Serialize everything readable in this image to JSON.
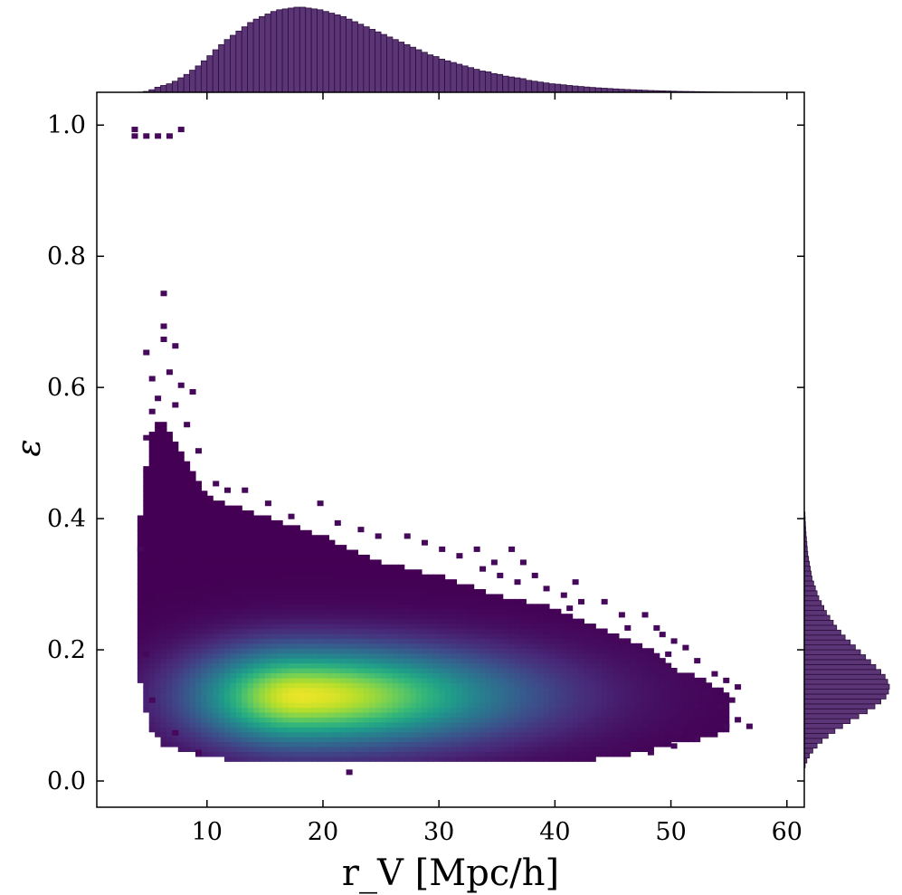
{
  "chart_data": {
    "type": "heatmap",
    "title": "",
    "xlabel": "r_V [Mpc/h]",
    "ylabel": "ε",
    "xlim": [
      0.5,
      61.5
    ],
    "ylim": [
      -0.04,
      1.05
    ],
    "xticks": [
      10,
      20,
      30,
      40,
      50,
      60
    ],
    "yticks": [
      0.0,
      0.2,
      0.4,
      0.6,
      0.8,
      1.0
    ],
    "xtick_labels": [
      "10",
      "20",
      "30",
      "40",
      "50",
      "60"
    ],
    "ytick_labels": [
      "0.0",
      "0.2",
      "0.4",
      "0.6",
      "0.8",
      "1.0"
    ],
    "colormap": "viridis",
    "grid": false,
    "density_peak": {
      "x": 18,
      "y": 0.13
    },
    "density_spread": {
      "x_left": 5.5,
      "x_right": 11,
      "y": 0.045
    },
    "envelope": [
      {
        "x": 4,
        "y_min": 0.17,
        "y_max": 0.36
      },
      {
        "x": 5,
        "y_min": 0.09,
        "y_max": 0.52
      },
      {
        "x": 6,
        "y_min": 0.06,
        "y_max": 0.55
      },
      {
        "x": 8,
        "y_min": 0.05,
        "y_max": 0.49
      },
      {
        "x": 10,
        "y_min": 0.04,
        "y_max": 0.43
      },
      {
        "x": 15,
        "y_min": 0.03,
        "y_max": 0.4
      },
      {
        "x": 20,
        "y_min": 0.03,
        "y_max": 0.37
      },
      {
        "x": 25,
        "y_min": 0.03,
        "y_max": 0.33
      },
      {
        "x": 30,
        "y_min": 0.03,
        "y_max": 0.31
      },
      {
        "x": 35,
        "y_min": 0.03,
        "y_max": 0.28
      },
      {
        "x": 40,
        "y_min": 0.03,
        "y_max": 0.26
      },
      {
        "x": 45,
        "y_min": 0.04,
        "y_max": 0.22
      },
      {
        "x": 48,
        "y_min": 0.05,
        "y_max": 0.2
      },
      {
        "x": 50,
        "y_min": 0.06,
        "y_max": 0.17
      },
      {
        "x": 53,
        "y_min": 0.07,
        "y_max": 0.15
      },
      {
        "x": 55,
        "y_min": 0.08,
        "y_max": 0.13
      }
    ],
    "extra_points": [
      {
        "x": 3.5,
        "y": 0.98
      },
      {
        "x": 4.5,
        "y": 0.98
      },
      {
        "x": 5.5,
        "y": 0.98
      },
      {
        "x": 6.5,
        "y": 0.98
      },
      {
        "x": 7.5,
        "y": 0.99
      },
      {
        "x": 3.5,
        "y": 0.99
      },
      {
        "x": 6.0,
        "y": 0.74
      },
      {
        "x": 6.0,
        "y": 0.69
      },
      {
        "x": 6.0,
        "y": 0.67
      },
      {
        "x": 7.0,
        "y": 0.66
      },
      {
        "x": 4.5,
        "y": 0.65
      },
      {
        "x": 6.5,
        "y": 0.62
      },
      {
        "x": 5.0,
        "y": 0.61
      },
      {
        "x": 7.5,
        "y": 0.6
      },
      {
        "x": 8.5,
        "y": 0.59
      },
      {
        "x": 5.5,
        "y": 0.58
      },
      {
        "x": 7.0,
        "y": 0.57
      },
      {
        "x": 5.0,
        "y": 0.56
      },
      {
        "x": 8.0,
        "y": 0.54
      },
      {
        "x": 4.5,
        "y": 0.52
      },
      {
        "x": 9.0,
        "y": 0.5
      },
      {
        "x": 10.5,
        "y": 0.45
      },
      {
        "x": 11.5,
        "y": 0.44
      },
      {
        "x": 13.0,
        "y": 0.44
      },
      {
        "x": 15.0,
        "y": 0.42
      },
      {
        "x": 19.5,
        "y": 0.42
      },
      {
        "x": 17.0,
        "y": 0.4
      },
      {
        "x": 21.0,
        "y": 0.39
      },
      {
        "x": 23.0,
        "y": 0.38
      },
      {
        "x": 24.5,
        "y": 0.37
      },
      {
        "x": 27.0,
        "y": 0.37
      },
      {
        "x": 28.5,
        "y": 0.36
      },
      {
        "x": 30.0,
        "y": 0.35
      },
      {
        "x": 33.0,
        "y": 0.35
      },
      {
        "x": 36.0,
        "y": 0.35
      },
      {
        "x": 31.5,
        "y": 0.34
      },
      {
        "x": 34.5,
        "y": 0.33
      },
      {
        "x": 37.0,
        "y": 0.33
      },
      {
        "x": 33.5,
        "y": 0.32
      },
      {
        "x": 35.0,
        "y": 0.31
      },
      {
        "x": 38.0,
        "y": 0.31
      },
      {
        "x": 36.5,
        "y": 0.3
      },
      {
        "x": 41.5,
        "y": 0.3
      },
      {
        "x": 39.0,
        "y": 0.29
      },
      {
        "x": 40.5,
        "y": 0.28
      },
      {
        "x": 42.0,
        "y": 0.27
      },
      {
        "x": 44.0,
        "y": 0.27
      },
      {
        "x": 41.0,
        "y": 0.26
      },
      {
        "x": 45.5,
        "y": 0.25
      },
      {
        "x": 47.5,
        "y": 0.25
      },
      {
        "x": 46.0,
        "y": 0.23
      },
      {
        "x": 48.5,
        "y": 0.23
      },
      {
        "x": 49.0,
        "y": 0.22
      },
      {
        "x": 50.0,
        "y": 0.21
      },
      {
        "x": 51.0,
        "y": 0.2
      },
      {
        "x": 49.5,
        "y": 0.19
      },
      {
        "x": 52.0,
        "y": 0.18
      },
      {
        "x": 53.5,
        "y": 0.16
      },
      {
        "x": 54.5,
        "y": 0.15
      },
      {
        "x": 55.5,
        "y": 0.14
      },
      {
        "x": 53.0,
        "y": 0.13
      },
      {
        "x": 55.0,
        "y": 0.12
      },
      {
        "x": 54.0,
        "y": 0.11
      },
      {
        "x": 52.5,
        "y": 0.1
      },
      {
        "x": 55.5,
        "y": 0.09
      },
      {
        "x": 54.5,
        "y": 0.08
      },
      {
        "x": 56.5,
        "y": 0.08
      },
      {
        "x": 50.5,
        "y": 0.07
      },
      {
        "x": 52.0,
        "y": 0.06
      },
      {
        "x": 50.0,
        "y": 0.05
      },
      {
        "x": 46.0,
        "y": 0.05
      },
      {
        "x": 48.0,
        "y": 0.04
      },
      {
        "x": 22.0,
        "y": 0.01
      },
      {
        "x": 4.0,
        "y": 0.35
      },
      {
        "x": 4.5,
        "y": 0.21
      },
      {
        "x": 4.5,
        "y": 0.19
      },
      {
        "x": 5.0,
        "y": 0.12
      },
      {
        "x": 7.0,
        "y": 0.07
      },
      {
        "x": 9.0,
        "y": 0.04
      }
    ],
    "marginal_x": {
      "type": "histogram",
      "x_start": 4.0,
      "bin_width": 0.5,
      "relative_counts": [
        0.002,
        0.01,
        0.03,
        0.06,
        0.08,
        0.1,
        0.13,
        0.17,
        0.21,
        0.26,
        0.31,
        0.37,
        0.43,
        0.5,
        0.56,
        0.62,
        0.67,
        0.72,
        0.77,
        0.82,
        0.86,
        0.89,
        0.92,
        0.95,
        0.97,
        0.98,
        0.99,
        1.0,
        1.0,
        0.99,
        0.98,
        0.97,
        0.95,
        0.93,
        0.91,
        0.89,
        0.86,
        0.83,
        0.8,
        0.77,
        0.74,
        0.71,
        0.68,
        0.65,
        0.62,
        0.59,
        0.56,
        0.53,
        0.5,
        0.47,
        0.44,
        0.42,
        0.39,
        0.37,
        0.35,
        0.33,
        0.31,
        0.29,
        0.27,
        0.25,
        0.24,
        0.22,
        0.21,
        0.19,
        0.18,
        0.17,
        0.16,
        0.14,
        0.13,
        0.12,
        0.11,
        0.1,
        0.095,
        0.088,
        0.08,
        0.074,
        0.068,
        0.062,
        0.057,
        0.052,
        0.048,
        0.044,
        0.04,
        0.036,
        0.033,
        0.03,
        0.027,
        0.024,
        0.021,
        0.019,
        0.017,
        0.015,
        0.013,
        0.011,
        0.01,
        0.009,
        0.008,
        0.007,
        0.006,
        0.005,
        0.004,
        0.003,
        0.003,
        0.002,
        0.002,
        0.002,
        0.001,
        0.001,
        0.001,
        0.001
      ]
    },
    "marginal_y": {
      "type": "histogram",
      "y_start": 0.02,
      "bin_width": 0.0075,
      "relative_counts": [
        0.01,
        0.03,
        0.06,
        0.1,
        0.15,
        0.21,
        0.28,
        0.36,
        0.45,
        0.54,
        0.64,
        0.74,
        0.83,
        0.9,
        0.96,
        0.99,
        1.0,
        0.98,
        0.95,
        0.9,
        0.84,
        0.78,
        0.72,
        0.66,
        0.6,
        0.54,
        0.48,
        0.43,
        0.38,
        0.34,
        0.3,
        0.26,
        0.23,
        0.2,
        0.17,
        0.15,
        0.13,
        0.11,
        0.09,
        0.08,
        0.07,
        0.06,
        0.05,
        0.04,
        0.035,
        0.03,
        0.025,
        0.02,
        0.016,
        0.013,
        0.01,
        0.008
      ]
    }
  },
  "colors": {
    "hist_fill": "#5b3575",
    "hist_edge": "#2d0f3e",
    "axis": "#000000"
  }
}
